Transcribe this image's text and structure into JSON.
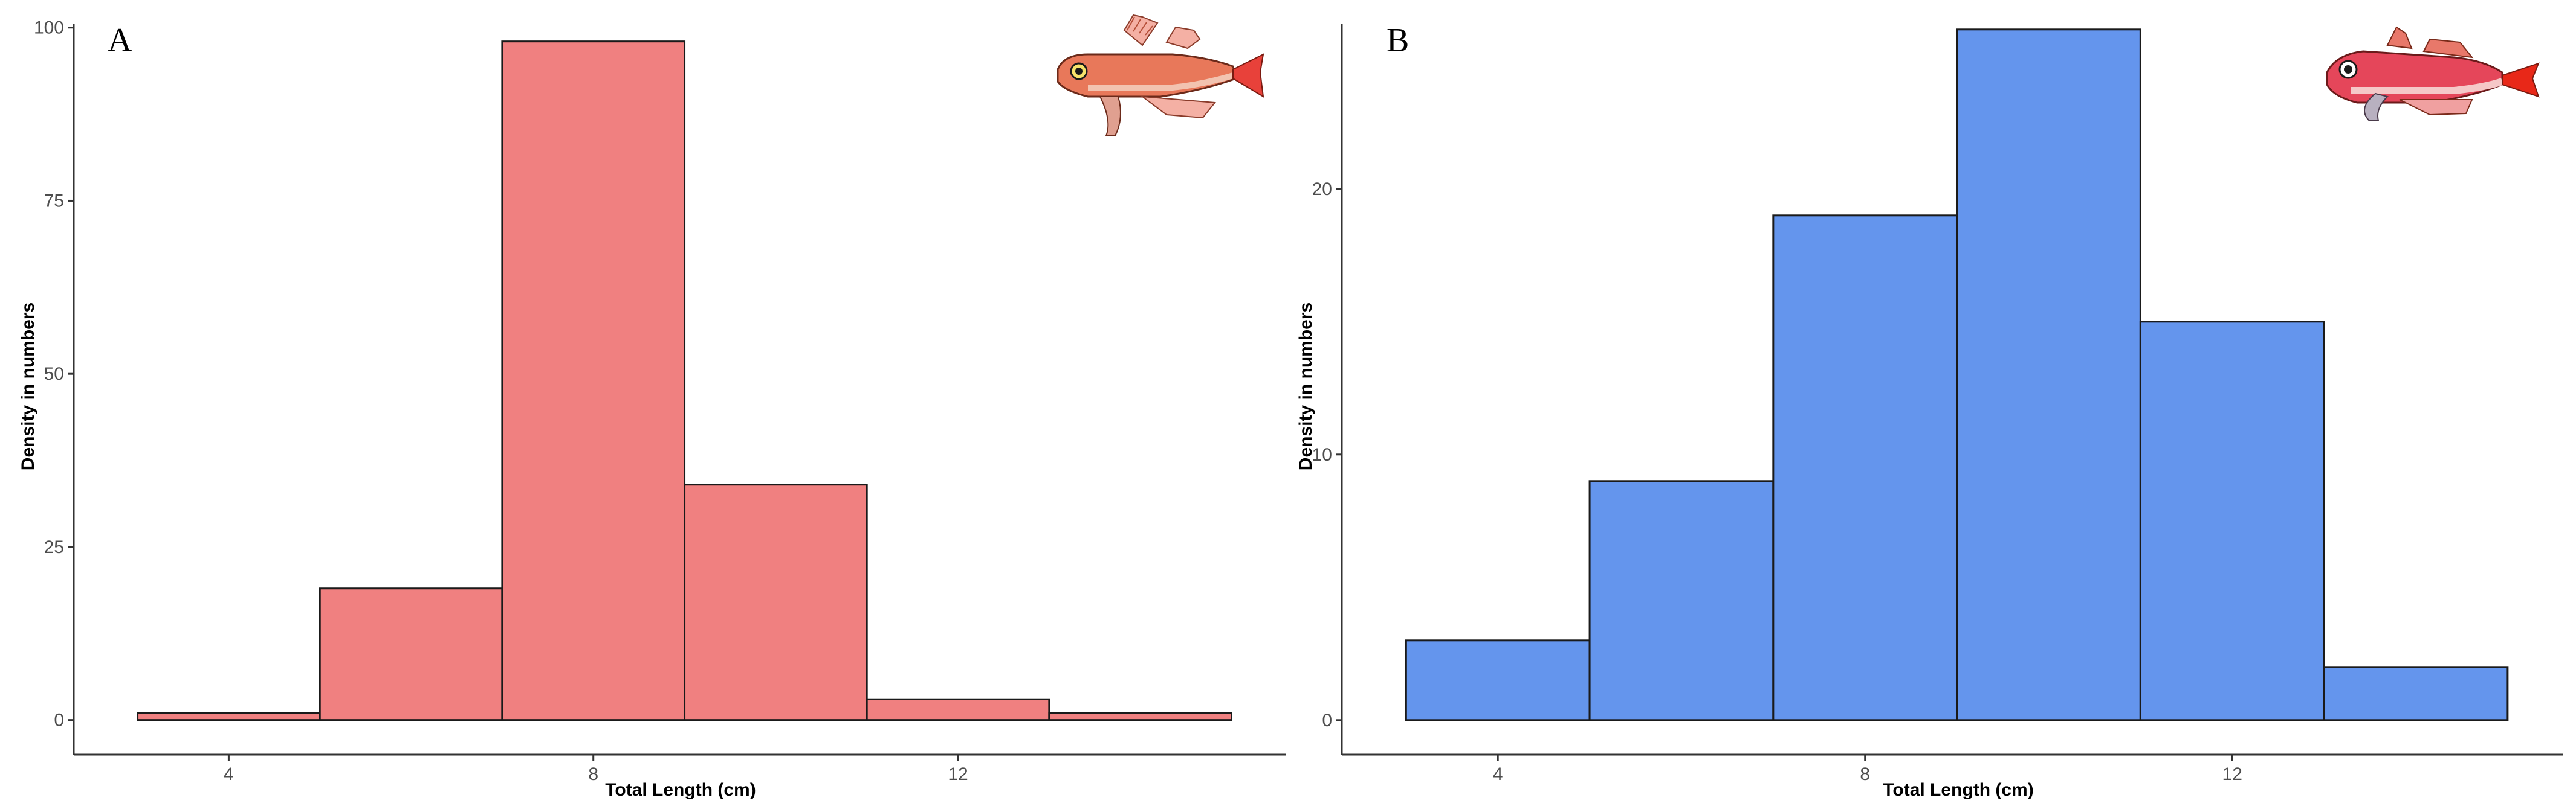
{
  "chart_data": [
    {
      "type": "bar",
      "panel_label": "A",
      "species_icon": "red-gurnard-fish-illustration",
      "xlabel": "Total Length (cm)",
      "ylabel": "Density in numbers",
      "xlim": [
        2.3,
        15.6
      ],
      "ylim": [
        -5,
        100.5
      ],
      "xticks": [
        4,
        8,
        12
      ],
      "yticks": [
        0,
        25,
        50,
        75,
        100
      ],
      "color": "#f08080",
      "bins": [
        {
          "x0": 3,
          "x1": 5,
          "value": 1
        },
        {
          "x0": 5,
          "x1": 7,
          "value": 19
        },
        {
          "x0": 7,
          "x1": 9,
          "value": 98
        },
        {
          "x0": 9,
          "x1": 11,
          "value": 34
        },
        {
          "x0": 11,
          "x1": 13,
          "value": 3
        },
        {
          "x0": 13,
          "x1": 15,
          "value": 1
        }
      ]
    },
    {
      "type": "bar",
      "panel_label": "B",
      "species_icon": "tub-gurnard-fish-illustration",
      "xlabel": "Total Length (cm)",
      "ylabel": "Density in numbers",
      "xlim": [
        2.3,
        15.6
      ],
      "ylim": [
        -1.3,
        26.2
      ],
      "xticks": [
        4,
        8,
        12
      ],
      "yticks": [
        0,
        10,
        20
      ],
      "color": "#6495ed",
      "bins": [
        {
          "x0": 3,
          "x1": 5,
          "value": 3
        },
        {
          "x0": 5,
          "x1": 7,
          "value": 9
        },
        {
          "x0": 7,
          "x1": 9,
          "value": 19
        },
        {
          "x0": 9,
          "x1": 11,
          "value": 26
        },
        {
          "x0": 11,
          "x1": 13,
          "value": 15
        },
        {
          "x0": 13,
          "x1": 15,
          "value": 2
        }
      ]
    }
  ]
}
